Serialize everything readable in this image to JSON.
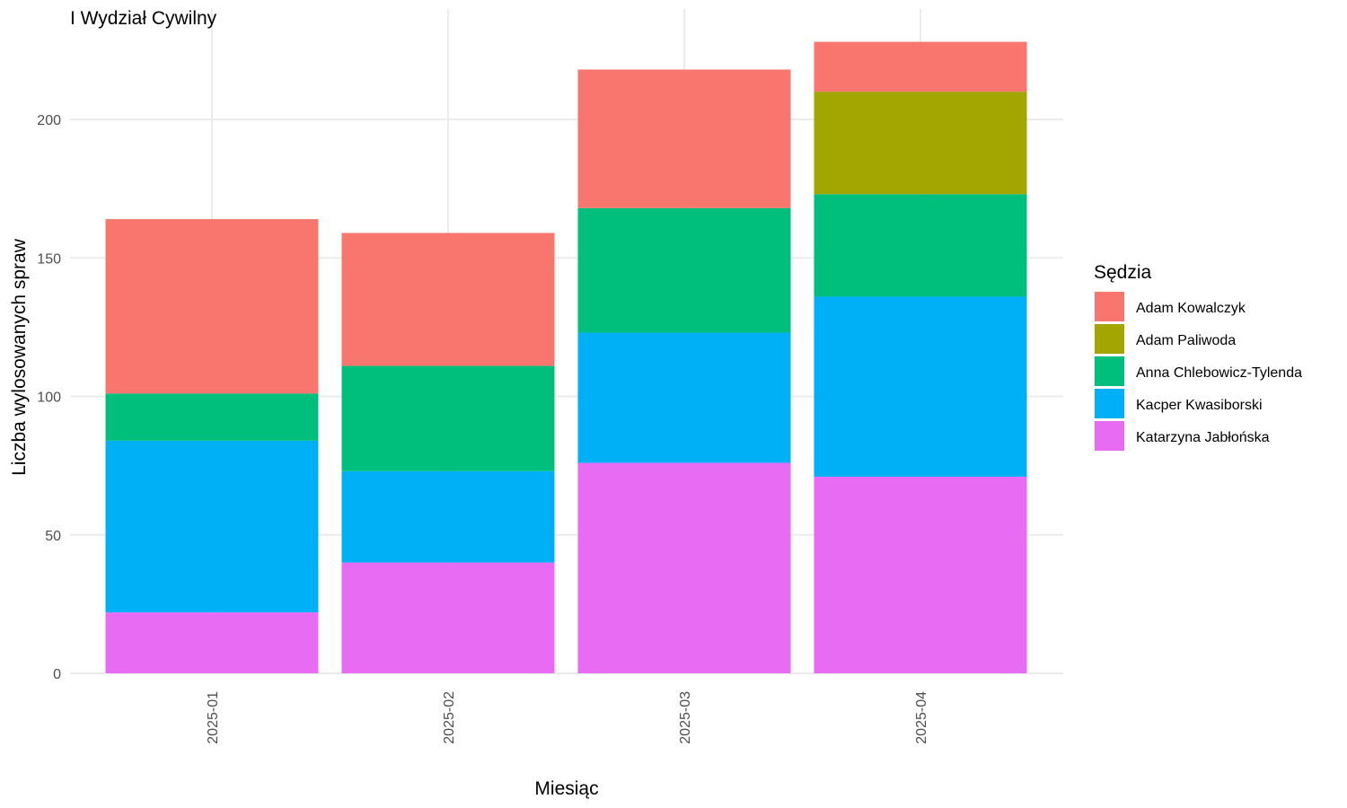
{
  "chart_data": {
    "type": "bar",
    "stacked": true,
    "title": "I Wydział Cywilny",
    "xlabel": "Miesiąc",
    "ylabel": "Liczba wylosowanych spraw",
    "categories": [
      "2025-01",
      "2025-02",
      "2025-03",
      "2025-04"
    ],
    "ylim": [
      0,
      228
    ],
    "yticks": [
      0,
      50,
      100,
      150,
      200
    ],
    "grid": true,
    "legend": {
      "title": "Sędzia",
      "position": "right"
    },
    "series": [
      {
        "name": "Katarzyna Jabłońska",
        "color": "#E76BF3",
        "values": [
          22,
          40,
          76,
          71
        ]
      },
      {
        "name": "Kacper Kwasiborski",
        "color": "#00B0F6",
        "values": [
          62,
          33,
          47,
          65
        ]
      },
      {
        "name": "Anna Chlebowicz-Tylenda",
        "color": "#00BF7D",
        "values": [
          17,
          38,
          45,
          37
        ]
      },
      {
        "name": "Adam Paliwoda",
        "color": "#A3A500",
        "values": [
          0,
          0,
          0,
          37
        ]
      },
      {
        "name": "Adam Kowalczyk",
        "color": "#F8766D",
        "values": [
          63,
          48,
          50,
          18
        ]
      }
    ],
    "legend_order": [
      "Adam Kowalczyk",
      "Adam Paliwoda",
      "Anna Chlebowicz-Tylenda",
      "Kacper Kwasiborski",
      "Katarzyna Jabłońska"
    ]
  }
}
